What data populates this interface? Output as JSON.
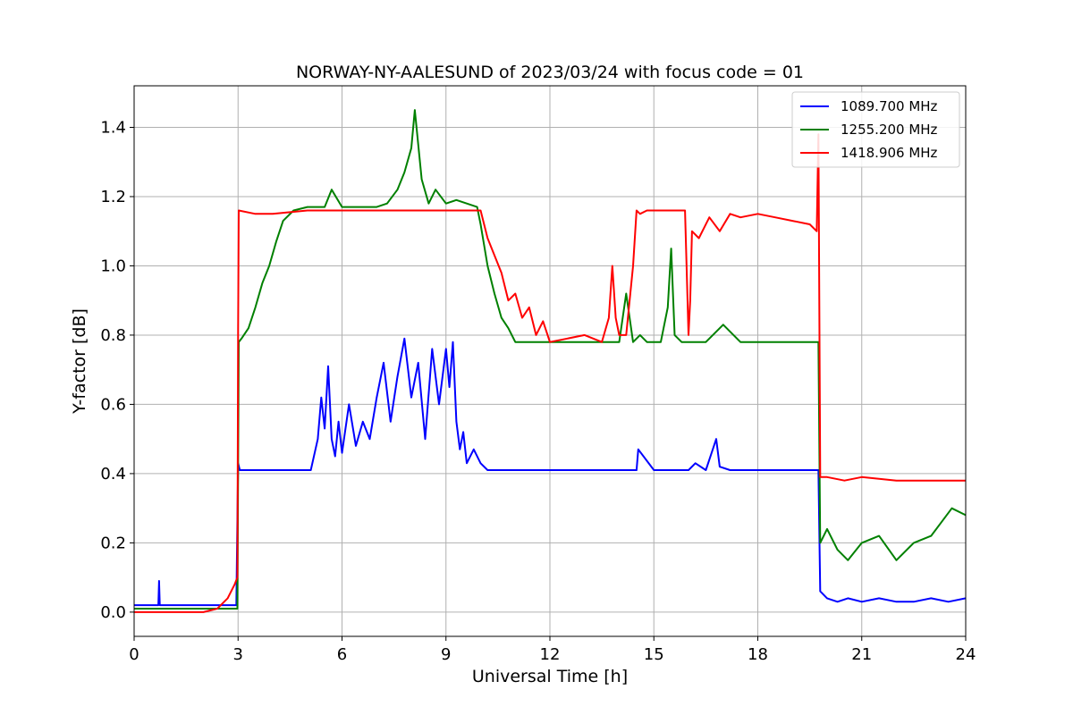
{
  "chart_data": {
    "type": "line",
    "title": "NORWAY-NY-AALESUND of 2023/03/24 with focus code = 01",
    "xlabel": "Universal Time [h]",
    "ylabel": "Y-factor [dB]",
    "xlim": [
      0,
      24
    ],
    "ylim": [
      -0.07,
      1.52
    ],
    "xticks": [
      0,
      3,
      6,
      9,
      12,
      15,
      18,
      21,
      24
    ],
    "xtick_labels": [
      "0",
      "3",
      "6",
      "9",
      "12",
      "15",
      "18",
      "21",
      "24"
    ],
    "yticks": [
      0.0,
      0.2,
      0.4,
      0.6,
      0.8,
      1.0,
      1.2,
      1.4
    ],
    "ytick_labels": [
      "0.0",
      "0.2",
      "0.4",
      "0.6",
      "0.8",
      "1.0",
      "1.2",
      "1.4"
    ],
    "grid": true,
    "legend_position": "top-right",
    "series": [
      {
        "name": "1089.700 MHz",
        "color": "#0000ff",
        "x": [
          0,
          0.5,
          0.7,
          0.72,
          0.74,
          1.5,
          2.6,
          2.95,
          3.0,
          3.05,
          3.3,
          4.0,
          5.0,
          5.1,
          5.3,
          5.4,
          5.5,
          5.6,
          5.7,
          5.8,
          5.9,
          6.0,
          6.2,
          6.4,
          6.6,
          6.8,
          7.0,
          7.2,
          7.4,
          7.6,
          7.8,
          8.0,
          8.2,
          8.4,
          8.6,
          8.8,
          9.0,
          9.1,
          9.2,
          9.3,
          9.4,
          9.5,
          9.6,
          9.8,
          10.0,
          10.2,
          10.4,
          10.6,
          11.0,
          12.0,
          13.0,
          13.5,
          14.0,
          14.5,
          14.55,
          15.0,
          16.0,
          16.2,
          16.5,
          16.8,
          16.9,
          17.2,
          18.0,
          19.0,
          19.7,
          19.75,
          19.8,
          20.0,
          20.3,
          20.6,
          21.0,
          21.5,
          22.0,
          22.5,
          23.0,
          23.5,
          24.0
        ],
        "y": [
          0.02,
          0.02,
          0.02,
          0.09,
          0.02,
          0.02,
          0.02,
          0.02,
          0.43,
          0.41,
          0.41,
          0.41,
          0.41,
          0.41,
          0.5,
          0.62,
          0.53,
          0.71,
          0.5,
          0.45,
          0.55,
          0.46,
          0.6,
          0.48,
          0.55,
          0.5,
          0.62,
          0.72,
          0.55,
          0.68,
          0.79,
          0.62,
          0.72,
          0.5,
          0.76,
          0.6,
          0.76,
          0.65,
          0.78,
          0.55,
          0.47,
          0.52,
          0.43,
          0.47,
          0.43,
          0.41,
          0.41,
          0.41,
          0.41,
          0.41,
          0.41,
          0.41,
          0.41,
          0.41,
          0.47,
          0.41,
          0.41,
          0.43,
          0.41,
          0.5,
          0.42,
          0.41,
          0.41,
          0.41,
          0.41,
          0.41,
          0.06,
          0.04,
          0.03,
          0.04,
          0.03,
          0.04,
          0.03,
          0.03,
          0.04,
          0.03,
          0.04
        ]
      },
      {
        "name": "1255.200 MHz",
        "color": "#008000",
        "x": [
          0,
          1.0,
          2.0,
          2.9,
          2.98,
          3.02,
          3.1,
          3.3,
          3.5,
          3.7,
          3.9,
          4.1,
          4.3,
          4.6,
          5.0,
          5.5,
          5.7,
          6.0,
          6.5,
          7.0,
          7.3,
          7.6,
          7.8,
          8.0,
          8.1,
          8.3,
          8.5,
          8.7,
          9.0,
          9.3,
          9.6,
          9.9,
          10.0,
          10.2,
          10.4,
          10.6,
          10.8,
          11.0,
          11.5,
          12.0,
          13.0,
          14.0,
          14.2,
          14.4,
          14.6,
          14.8,
          15.0,
          15.2,
          15.4,
          15.5,
          15.6,
          15.8,
          16.0,
          16.5,
          17.0,
          17.5,
          18.0,
          19.0,
          19.7,
          19.75,
          19.8,
          20.0,
          20.3,
          20.6,
          21.0,
          21.5,
          22.0,
          22.5,
          23.0,
          23.3,
          23.6,
          24.0
        ],
        "y": [
          0.01,
          0.01,
          0.01,
          0.01,
          0.01,
          0.78,
          0.79,
          0.82,
          0.88,
          0.95,
          1.0,
          1.07,
          1.13,
          1.16,
          1.17,
          1.17,
          1.22,
          1.17,
          1.17,
          1.17,
          1.18,
          1.22,
          1.27,
          1.34,
          1.45,
          1.25,
          1.18,
          1.22,
          1.18,
          1.19,
          1.18,
          1.17,
          1.12,
          1.0,
          0.92,
          0.85,
          0.82,
          0.78,
          0.78,
          0.78,
          0.78,
          0.78,
          0.92,
          0.78,
          0.8,
          0.78,
          0.78,
          0.78,
          0.88,
          1.05,
          0.8,
          0.78,
          0.78,
          0.78,
          0.83,
          0.78,
          0.78,
          0.78,
          0.78,
          0.78,
          0.2,
          0.24,
          0.18,
          0.15,
          0.2,
          0.22,
          0.15,
          0.2,
          0.22,
          0.26,
          0.3,
          0.28
        ]
      },
      {
        "name": "1418.906 MHz",
        "color": "#ff0000",
        "x": [
          0,
          1.0,
          2.0,
          2.4,
          2.7,
          2.9,
          2.98,
          3.0,
          3.02,
          3.5,
          4.0,
          5.0,
          6.0,
          7.0,
          8.0,
          9.0,
          10.0,
          10.2,
          10.4,
          10.6,
          10.8,
          11.0,
          11.2,
          11.4,
          11.6,
          11.8,
          12.0,
          12.5,
          13.0,
          13.5,
          13.7,
          13.8,
          13.9,
          14.0,
          14.2,
          14.4,
          14.5,
          14.6,
          14.8,
          15.0,
          15.5,
          15.9,
          16.0,
          16.05,
          16.1,
          16.3,
          16.6,
          16.9,
          17.2,
          17.5,
          18.0,
          18.5,
          19.0,
          19.5,
          19.7,
          19.75,
          19.8,
          20.0,
          20.5,
          21.0,
          22.0,
          23.0,
          24.0
        ],
        "y": [
          0.0,
          0.0,
          0.0,
          0.01,
          0.04,
          0.08,
          0.1,
          0.82,
          1.16,
          1.15,
          1.15,
          1.16,
          1.16,
          1.16,
          1.16,
          1.16,
          1.16,
          1.08,
          1.03,
          0.98,
          0.9,
          0.92,
          0.85,
          0.88,
          0.8,
          0.84,
          0.78,
          0.79,
          0.8,
          0.78,
          0.85,
          1.0,
          0.85,
          0.8,
          0.8,
          1.0,
          1.16,
          1.15,
          1.16,
          1.16,
          1.16,
          1.16,
          0.8,
          0.9,
          1.1,
          1.08,
          1.14,
          1.1,
          1.15,
          1.14,
          1.15,
          1.14,
          1.13,
          1.12,
          1.1,
          1.38,
          0.39,
          0.39,
          0.38,
          0.39,
          0.38,
          0.38,
          0.38
        ]
      }
    ]
  }
}
